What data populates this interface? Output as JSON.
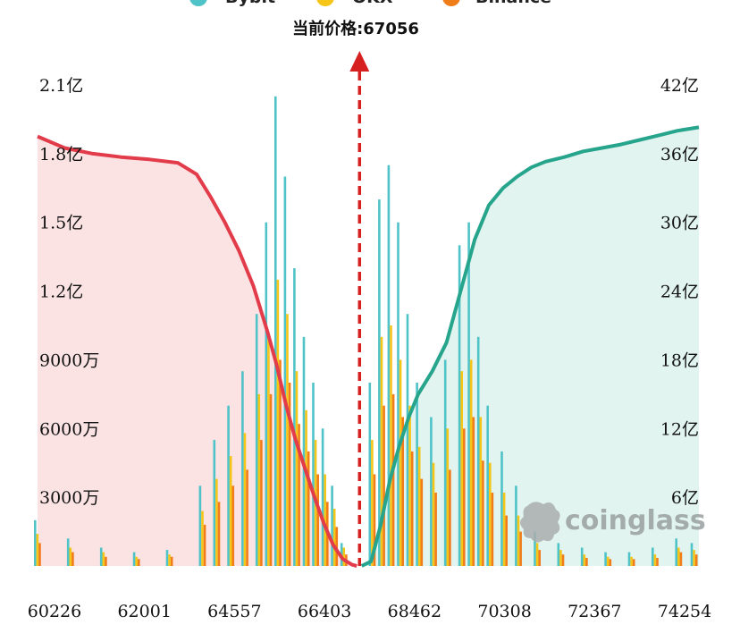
{
  "chart_data": {
    "type": "bar",
    "current_price_label": "当前价格:67056",
    "current_price": 67056,
    "legend": [
      {
        "name": "Bybit",
        "color": "#4fc3c8"
      },
      {
        "name": "OKX",
        "color": "#f5c518"
      },
      {
        "name": "Binance",
        "color": "#f07d1a"
      }
    ],
    "x_ticks": [
      "60226",
      "62001",
      "64557",
      "66403",
      "68462",
      "70308",
      "72367",
      "74254"
    ],
    "xlim": [
      60226,
      74254
    ],
    "left_axis": {
      "ticks": [
        "3000万",
        "6000万",
        "9000万",
        "1.2亿",
        "1.5亿",
        "1.8亿",
        "2.1亿"
      ],
      "ylim": [
        0,
        210000000
      ]
    },
    "right_axis": {
      "ticks": [
        "6亿",
        "12亿",
        "18亿",
        "24亿",
        "30亿",
        "36亿",
        "42亿"
      ],
      "ylim": [
        0,
        4200000000
      ]
    },
    "cumulative_long": {
      "color": "#e23b4a",
      "x": [
        60226,
        60800,
        61400,
        62000,
        62600,
        63200,
        63600,
        63900,
        64200,
        64500,
        64800,
        65100,
        65300,
        65500,
        65700,
        65900,
        66100,
        66300,
        66500,
        66700,
        66900,
        67000
      ],
      "y": [
        3750000000,
        3650000000,
        3600000000,
        3570000000,
        3550000000,
        3520000000,
        3420000000,
        3220000000,
        3000000000,
        2750000000,
        2450000000,
        2050000000,
        1750000000,
        1400000000,
        1100000000,
        850000000,
        600000000,
        370000000,
        180000000,
        60000000,
        10000000,
        0
      ]
    },
    "cumulative_short": {
      "color": "#26a58c",
      "x": [
        67100,
        67300,
        67500,
        67700,
        67900,
        68100,
        68300,
        68600,
        68900,
        69200,
        69500,
        69800,
        70100,
        70400,
        70700,
        71000,
        71400,
        71800,
        72200,
        72600,
        73000,
        73400,
        73800,
        74254
      ],
      "y": [
        0,
        40000000,
        350000000,
        750000000,
        1050000000,
        1300000000,
        1500000000,
        1700000000,
        1950000000,
        2400000000,
        2850000000,
        3150000000,
        3300000000,
        3400000000,
        3480000000,
        3530000000,
        3570000000,
        3620000000,
        3650000000,
        3680000000,
        3720000000,
        3760000000,
        3800000000,
        3830000000
      ]
    },
    "bars": {
      "x": [
        60226,
        60926,
        61626,
        62326,
        63026,
        63726,
        64026,
        64326,
        64626,
        64926,
        65126,
        65326,
        65526,
        65726,
        65926,
        66126,
        66326,
        66526,
        66726,
        67326,
        67526,
        67726,
        67926,
        68126,
        68326,
        68626,
        68926,
        69226,
        69426,
        69626,
        69826,
        70126,
        70426,
        70826,
        71326,
        71826,
        72326,
        72826,
        73326,
        73826,
        74154
      ],
      "Bybit": [
        20000000,
        12000000,
        8000000,
        6000000,
        7000000,
        35000000,
        55000000,
        70000000,
        85000000,
        110000000,
        150000000,
        205000000,
        170000000,
        130000000,
        100000000,
        80000000,
        60000000,
        35000000,
        10000000,
        80000000,
        160000000,
        175000000,
        150000000,
        110000000,
        80000000,
        65000000,
        90000000,
        140000000,
        150000000,
        100000000,
        70000000,
        50000000,
        35000000,
        15000000,
        10000000,
        8000000,
        6000000,
        6000000,
        8000000,
        12000000,
        10000000
      ],
      "OKX": [
        14000000,
        8000000,
        6000000,
        4000000,
        5000000,
        24000000,
        38000000,
        48000000,
        58000000,
        75000000,
        100000000,
        125000000,
        110000000,
        85000000,
        68000000,
        55000000,
        40000000,
        25000000,
        8000000,
        55000000,
        100000000,
        105000000,
        90000000,
        70000000,
        52000000,
        45000000,
        60000000,
        85000000,
        90000000,
        65000000,
        45000000,
        32000000,
        22000000,
        10000000,
        7000000,
        5000000,
        4000000,
        4000000,
        5000000,
        8000000,
        7000000
      ],
      "Binance": [
        10000000,
        6000000,
        4000000,
        3000000,
        4000000,
        18000000,
        28000000,
        35000000,
        42000000,
        55000000,
        75000000,
        90000000,
        80000000,
        62000000,
        50000000,
        40000000,
        28000000,
        17000000,
        5000000,
        40000000,
        70000000,
        75000000,
        65000000,
        50000000,
        38000000,
        32000000,
        42000000,
        60000000,
        65000000,
        46000000,
        32000000,
        22000000,
        15000000,
        7000000,
        5000000,
        3500000,
        3000000,
        3000000,
        3500000,
        6000000,
        5000000
      ]
    },
    "watermark": "coinglass"
  }
}
